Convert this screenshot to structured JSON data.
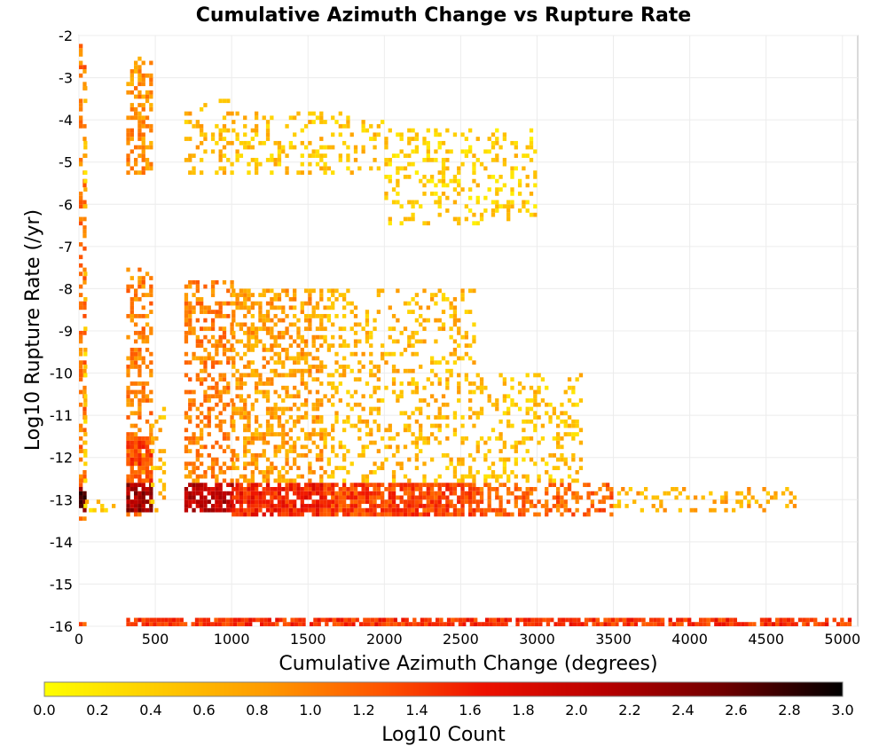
{
  "chart_data": {
    "type": "heatmap",
    "title": "Cumulative Azimuth Change vs Rupture Rate",
    "xlabel": "Cumulative Azimuth Change (degrees)",
    "ylabel": "Log10 Rupture Rate (/yr)",
    "xlim": [
      0,
      5100
    ],
    "ylim": [
      -16,
      -2
    ],
    "x_ticks": [
      "0",
      "500",
      "1000",
      "1500",
      "2000",
      "2500",
      "3000",
      "3500",
      "4000",
      "4500",
      "5000"
    ],
    "y_ticks": [
      "-2",
      "-3",
      "-4",
      "-5",
      "-6",
      "-7",
      "-8",
      "-9",
      "-10",
      "-11",
      "-12",
      "-13",
      "-14",
      "-15",
      "-16"
    ],
    "grid": true,
    "colorbar": {
      "label": "Log10 Count",
      "range": [
        0.0,
        3.0
      ],
      "ticks": [
        "0.0",
        "0.2",
        "0.4",
        "0.6",
        "0.8",
        "1.0",
        "1.2",
        "1.4",
        "1.6",
        "1.8",
        "2.0",
        "2.2",
        "2.4",
        "2.6",
        "2.8",
        "3.0"
      ],
      "colors": [
        "#ffff00",
        "#ffcc00",
        "#ff9900",
        "#ff5500",
        "#ee1100",
        "#b80000",
        "#700000",
        "#000000"
      ]
    },
    "bin_size": {
      "x": 25,
      "y": 0.1
    },
    "regions": [
      {
        "x": [
          0,
          30
        ],
        "y": [
          -13.6,
          -2.1
        ],
        "value": 1.1
      },
      {
        "x": [
          0,
          30
        ],
        "y": [
          -13.3,
          -12.7
        ],
        "value": 2.6
      },
      {
        "x": [
          0,
          30
        ],
        "y": [
          -16,
          -15.9
        ],
        "value": 1.3
      },
      {
        "x": [
          30,
          40
        ],
        "y": [
          -13.3,
          -2.8
        ],
        "value": 0.5
      },
      {
        "x": [
          40,
          260
        ],
        "y": [
          -13.3,
          -13.0
        ],
        "value": 0.5
      },
      {
        "x": [
          310,
          470
        ],
        "y": [
          -13.5,
          -7.5
        ],
        "value": 1.0
      },
      {
        "x": [
          310,
          470
        ],
        "y": [
          -13.3,
          -12.6
        ],
        "value": 2.3
      },
      {
        "x": [
          310,
          470
        ],
        "y": [
          -12.6,
          -11.5
        ],
        "value": 1.4
      },
      {
        "x": [
          310,
          470
        ],
        "y": [
          -5.3,
          -2.5
        ],
        "value": 0.9
      },
      {
        "x": [
          470,
          560
        ],
        "y": [
          -13.3,
          -10.8
        ],
        "value": 0.6
      },
      {
        "x": [
          690,
          1000
        ],
        "y": [
          -13.3,
          -12.6
        ],
        "value": 2.1
      },
      {
        "x": [
          690,
          1000
        ],
        "y": [
          -12.6,
          -7.8
        ],
        "value": 1.0
      },
      {
        "x": [
          690,
          1000
        ],
        "y": [
          -5.3,
          -3.5
        ],
        "value": 0.6
      },
      {
        "x": [
          1000,
          1600
        ],
        "y": [
          -13.4,
          -12.6
        ],
        "value": 1.6
      },
      {
        "x": [
          1000,
          1600
        ],
        "y": [
          -12.6,
          -8.0
        ],
        "value": 0.8
      },
      {
        "x": [
          1000,
          2000
        ],
        "y": [
          -5.3,
          -3.8
        ],
        "value": 0.5
      },
      {
        "x": [
          1600,
          2600
        ],
        "y": [
          -13.4,
          -12.6
        ],
        "value": 1.4
      },
      {
        "x": [
          1600,
          2600
        ],
        "y": [
          -12.6,
          -8.0
        ],
        "value": 0.6
      },
      {
        "x": [
          2000,
          3000
        ],
        "y": [
          -6.5,
          -4.2
        ],
        "value": 0.4
      },
      {
        "x": [
          2600,
          3500
        ],
        "y": [
          -13.4,
          -12.6
        ],
        "value": 1.2
      },
      {
        "x": [
          2600,
          3300
        ],
        "y": [
          -12.6,
          -10.0
        ],
        "value": 0.5
      },
      {
        "x": [
          3500,
          4700
        ],
        "y": [
          -13.3,
          -12.7
        ],
        "value": 0.7
      },
      {
        "x": [
          310,
          5050
        ],
        "y": [
          -16,
          -15.85
        ],
        "value": 1.5
      }
    ]
  }
}
